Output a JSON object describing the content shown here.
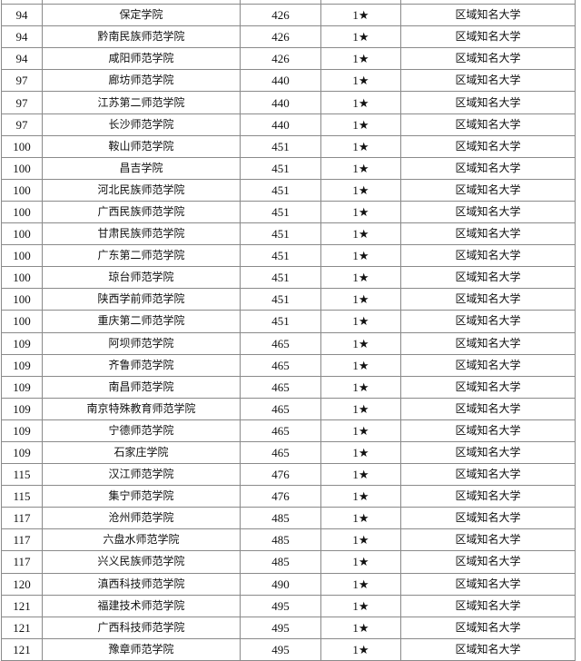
{
  "star_glyph": "★",
  "rows": [
    {
      "rank": "",
      "name": "",
      "score": "",
      "stars": "",
      "level": ""
    },
    {
      "rank": "94",
      "name": "保定学院",
      "score": "426",
      "stars": "1★",
      "level": "区域知名大学"
    },
    {
      "rank": "94",
      "name": "黔南民族师范学院",
      "score": "426",
      "stars": "1★",
      "level": "区域知名大学"
    },
    {
      "rank": "94",
      "name": "咸阳师范学院",
      "score": "426",
      "stars": "1★",
      "level": "区域知名大学"
    },
    {
      "rank": "97",
      "name": "廊坊师范学院",
      "score": "440",
      "stars": "1★",
      "level": "区域知名大学"
    },
    {
      "rank": "97",
      "name": "江苏第二师范学院",
      "score": "440",
      "stars": "1★",
      "level": "区域知名大学"
    },
    {
      "rank": "97",
      "name": "长沙师范学院",
      "score": "440",
      "stars": "1★",
      "level": "区域知名大学"
    },
    {
      "rank": "100",
      "name": "鞍山师范学院",
      "score": "451",
      "stars": "1★",
      "level": "区域知名大学"
    },
    {
      "rank": "100",
      "name": "昌吉学院",
      "score": "451",
      "stars": "1★",
      "level": "区域知名大学"
    },
    {
      "rank": "100",
      "name": "河北民族师范学院",
      "score": "451",
      "stars": "1★",
      "level": "区域知名大学"
    },
    {
      "rank": "100",
      "name": "广西民族师范学院",
      "score": "451",
      "stars": "1★",
      "level": "区域知名大学"
    },
    {
      "rank": "100",
      "name": "甘肃民族师范学院",
      "score": "451",
      "stars": "1★",
      "level": "区域知名大学"
    },
    {
      "rank": "100",
      "name": "广东第二师范学院",
      "score": "451",
      "stars": "1★",
      "level": "区域知名大学"
    },
    {
      "rank": "100",
      "name": "琼台师范学院",
      "score": "451",
      "stars": "1★",
      "level": "区域知名大学"
    },
    {
      "rank": "100",
      "name": "陕西学前师范学院",
      "score": "451",
      "stars": "1★",
      "level": "区域知名大学"
    },
    {
      "rank": "100",
      "name": "重庆第二师范学院",
      "score": "451",
      "stars": "1★",
      "level": "区域知名大学"
    },
    {
      "rank": "109",
      "name": "阿坝师范学院",
      "score": "465",
      "stars": "1★",
      "level": "区域知名大学"
    },
    {
      "rank": "109",
      "name": "齐鲁师范学院",
      "score": "465",
      "stars": "1★",
      "level": "区域知名大学"
    },
    {
      "rank": "109",
      "name": "南昌师范学院",
      "score": "465",
      "stars": "1★",
      "level": "区域知名大学"
    },
    {
      "rank": "109",
      "name": "南京特殊教育师范学院",
      "score": "465",
      "stars": "1★",
      "level": "区域知名大学"
    },
    {
      "rank": "109",
      "name": "宁德师范学院",
      "score": "465",
      "stars": "1★",
      "level": "区域知名大学"
    },
    {
      "rank": "109",
      "name": "石家庄学院",
      "score": "465",
      "stars": "1★",
      "level": "区域知名大学"
    },
    {
      "rank": "115",
      "name": "汉江师范学院",
      "score": "476",
      "stars": "1★",
      "level": "区域知名大学"
    },
    {
      "rank": "115",
      "name": "集宁师范学院",
      "score": "476",
      "stars": "1★",
      "level": "区域知名大学"
    },
    {
      "rank": "117",
      "name": "沧州师范学院",
      "score": "485",
      "stars": "1★",
      "level": "区域知名大学"
    },
    {
      "rank": "117",
      "name": "六盘水师范学院",
      "score": "485",
      "stars": "1★",
      "level": "区域知名大学"
    },
    {
      "rank": "117",
      "name": "兴义民族师范学院",
      "score": "485",
      "stars": "1★",
      "level": "区域知名大学"
    },
    {
      "rank": "120",
      "name": "滇西科技师范学院",
      "score": "490",
      "stars": "1★",
      "level": "区域知名大学"
    },
    {
      "rank": "121",
      "name": "福建技术师范学院",
      "score": "495",
      "stars": "1★",
      "level": "区域知名大学"
    },
    {
      "rank": "121",
      "name": "广西科技师范学院",
      "score": "495",
      "stars": "1★",
      "level": "区域知名大学"
    },
    {
      "rank": "121",
      "name": "豫章师范学院",
      "score": "495",
      "stars": "1★",
      "level": "区域知名大学"
    }
  ]
}
